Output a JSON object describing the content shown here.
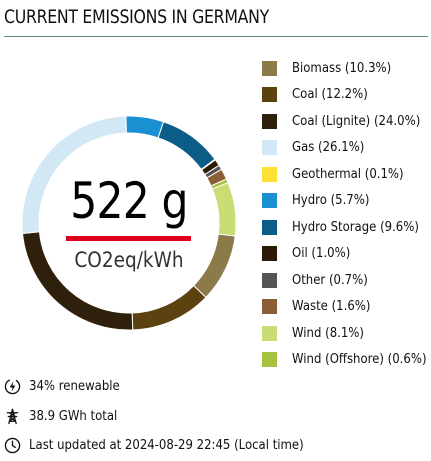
{
  "header": {
    "title": "CURRENT EMISSIONS IN GERMANY"
  },
  "center": {
    "value": "522 g",
    "unit": "CO2eq/kWh"
  },
  "stats": {
    "renewable": "34% renewable",
    "total": "38.9 GWh total",
    "updated": "Last updated at 2024-08-29 22:45 (Local time)"
  },
  "icons": {
    "renewable": "lightning-circle-icon",
    "total": "power-tower-icon",
    "updated": "clock-icon"
  },
  "chart_data": {
    "type": "pie",
    "style": "donut",
    "legend_position": "right",
    "slices": [
      {
        "label": "Biomass (10.3%)",
        "value": 10.3,
        "color": "#8b7a4a"
      },
      {
        "label": "Coal (12.2%)",
        "value": 12.2,
        "color": "#5c4210"
      },
      {
        "label": "Coal (Lignite) (24.0%)",
        "value": 24.0,
        "color": "#2e200c"
      },
      {
        "label": "Gas (26.1%)",
        "value": 26.1,
        "color": "#d3e8f5"
      },
      {
        "label": "Geothermal (0.1%)",
        "value": 0.1,
        "color": "#fce032"
      },
      {
        "label": "Hydro (5.7%)",
        "value": 5.7,
        "color": "#1a8fd2"
      },
      {
        "label": "Hydro Storage (9.6%)",
        "value": 9.6,
        "color": "#0b5c86"
      },
      {
        "label": "Oil (1.0%)",
        "value": 1.0,
        "color": "#2a1a06"
      },
      {
        "label": "Other (0.7%)",
        "value": 0.7,
        "color": "#555555"
      },
      {
        "label": "Waste (1.6%)",
        "value": 1.6,
        "color": "#8a5e36"
      },
      {
        "label": "Wind (8.1%)",
        "value": 8.1,
        "color": "#c9de72"
      },
      {
        "label": "Wind (Offshore) (0.6%)",
        "value": 0.6,
        "color": "#a7c140"
      }
    ],
    "draw_order": [
      "Biomass (10.3%)",
      "Coal (12.2%)",
      "Coal (Lignite) (24.0%)",
      "Gas (26.1%)",
      "Hydro (5.7%)",
      "Hydro Storage (9.6%)",
      "Geothermal (0.1%)",
      "Oil (1.0%)",
      "Other (0.7%)",
      "Waste (1.6%)",
      "Wind (Offshore) (0.6%)",
      "Wind (8.1%)"
    ]
  }
}
